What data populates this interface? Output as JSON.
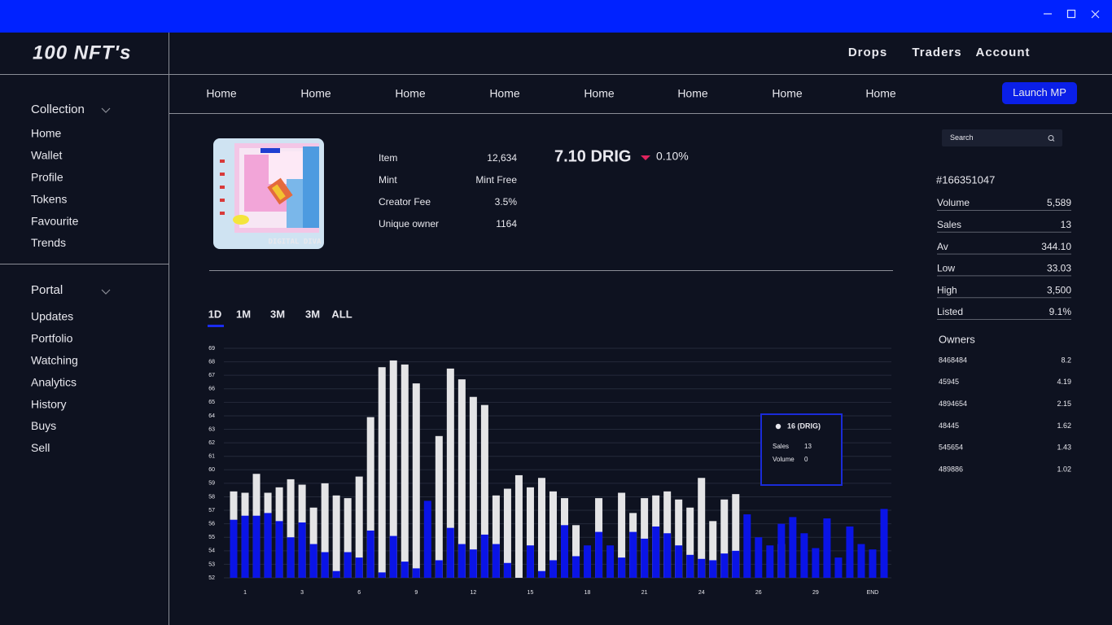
{
  "logo": "100 NFT's",
  "top_nav": [
    "Drops",
    "Traders",
    "Account"
  ],
  "sub_nav": [
    "Home",
    "Home",
    "Home",
    "Home",
    "Home",
    "Home",
    "Home",
    "Home"
  ],
  "launch_button": "Launch MP",
  "sidebar": {
    "sections": [
      {
        "title": "Collection",
        "items": [
          "Home",
          "Wallet",
          "Profile",
          "Tokens",
          "Favourite",
          "Trends"
        ]
      },
      {
        "title": "Portal",
        "items": [
          "Updates",
          "Portfolio",
          "Watching",
          "Analytics",
          "History",
          "Buys",
          "Sell"
        ]
      }
    ]
  },
  "nft": {
    "image_caption": "DIGITAL DIVA",
    "stats": [
      [
        "Item",
        "12,634"
      ],
      [
        "Mint",
        "Mint Free"
      ],
      [
        "Creator Fee",
        "3.5%"
      ],
      [
        "Unique owner",
        "1164"
      ]
    ],
    "price": "7.10 DRIG",
    "change": "0.10%"
  },
  "search_placeholder": "Search",
  "token": {
    "id": "#166351047",
    "stats": [
      [
        "Volume",
        "5,589"
      ],
      [
        "Sales",
        "13"
      ],
      [
        "Av",
        "344.10"
      ],
      [
        "Low",
        "33.03"
      ],
      [
        "High",
        "3,500"
      ],
      [
        "Listed",
        "9.1%"
      ]
    ]
  },
  "owners": {
    "title": "Owners",
    "rows": [
      [
        "8468484",
        "8.2"
      ],
      [
        "45945",
        "4.19"
      ],
      [
        "4894654",
        "2.15"
      ],
      [
        "48445",
        "1.62"
      ],
      [
        "545654",
        "1.43"
      ],
      [
        "489886",
        "1.02"
      ]
    ]
  },
  "chart_tabs": [
    "1D",
    "1M",
    "3M",
    "3M",
    "ALL"
  ],
  "chart_data": {
    "type": "bar",
    "categories": [
      null,
      "1",
      null,
      null,
      null,
      null,
      "3",
      null,
      null,
      null,
      null,
      "6",
      null,
      null,
      null,
      null,
      "9",
      null,
      null,
      null,
      null,
      "12",
      null,
      null,
      null,
      null,
      "15",
      null,
      null,
      null,
      null,
      "18",
      null,
      null,
      null,
      null,
      "21",
      null,
      null,
      null,
      null,
      "24",
      null,
      null,
      null,
      null,
      "26",
      null,
      null,
      null,
      null,
      "29",
      null,
      null,
      null,
      null,
      "END",
      null
    ],
    "series": [
      {
        "color": "#e4e4e6",
        "values": [
          58.4,
          58.3,
          59.7,
          58.3,
          58.7,
          59.3,
          58.9,
          57.2,
          59.0,
          58.1,
          57.9,
          59.5,
          63.9,
          67.6,
          68.1,
          67.8,
          66.4,
          null,
          62.5,
          67.5,
          66.7,
          65.4,
          64.8,
          58.1,
          58.6,
          59.6,
          58.7,
          59.4,
          58.4,
          57.9,
          55.9,
          null,
          57.9,
          null,
          58.3,
          56.8,
          57.9,
          58.1,
          58.4,
          57.8,
          57.2,
          59.4,
          56.2,
          57.8,
          58.2,
          null,
          null,
          null,
          54.5,
          null,
          null,
          null,
          null,
          null,
          null,
          null,
          null,
          null
        ]
      },
      {
        "color": "#0a14e6",
        "values": [
          56.3,
          56.6,
          56.6,
          56.8,
          56.2,
          55.0,
          56.1,
          54.5,
          53.9,
          52.5,
          53.9,
          53.5,
          55.5,
          52.4,
          55.1,
          53.2,
          52.7,
          57.7,
          53.3,
          55.7,
          54.5,
          54.1,
          55.2,
          54.5,
          53.1,
          null,
          54.4,
          52.5,
          53.3,
          55.9,
          53.6,
          54.4,
          55.4,
          54.4,
          53.5,
          55.4,
          54.9,
          55.8,
          55.3,
          54.4,
          53.7,
          53.4,
          53.3,
          53.8,
          54.0,
          56.7,
          55.0,
          54.4,
          56.0,
          56.5,
          55.3,
          54.2,
          56.4,
          53.5,
          55.8,
          54.5,
          54.1,
          57.1
        ]
      }
    ],
    "ylim": [
      52,
      69
    ],
    "yticks": [
      52,
      53,
      54,
      55,
      56,
      57,
      58,
      59,
      60,
      61,
      62,
      63,
      64,
      65,
      66,
      67,
      68,
      69
    ],
    "grid": true,
    "tooltip": {
      "title": "16 (DRIG)",
      "rows": [
        [
          "Sales",
          "13"
        ],
        [
          "Volume",
          "0"
        ]
      ]
    }
  }
}
